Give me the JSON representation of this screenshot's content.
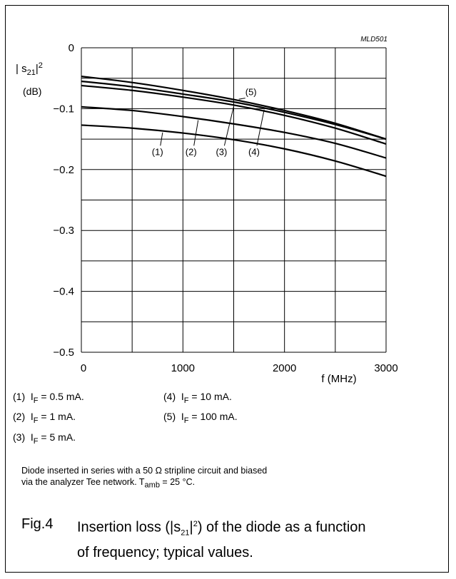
{
  "chart_data": {
    "type": "line",
    "code": "MLD501",
    "ylabel": "|s21|2",
    "ylabel_unit": "(dB)",
    "xlabel": "f (MHz)",
    "xlim": [
      0,
      3000
    ],
    "ylim": [
      -0.5,
      0
    ],
    "x_ticks": [
      0,
      1000,
      2000,
      3000
    ],
    "y_ticks": [
      0,
      -0.1,
      -0.2,
      -0.3,
      -0.4,
      -0.5
    ],
    "y_tick_labels": [
      "0",
      "−0.1",
      "−0.2",
      "−0.3",
      "−0.4",
      "−0.5"
    ],
    "x_tick_labels": [
      "0",
      "1000",
      "2000",
      "3000"
    ],
    "grid": true,
    "x": [
      0,
      500,
      1000,
      1500,
      2000,
      2500,
      3000
    ],
    "series": [
      {
        "name": "(1)",
        "values": [
          -0.127,
          -0.132,
          -0.14,
          -0.151,
          -0.166,
          -0.186,
          -0.211
        ]
      },
      {
        "name": "(2)",
        "values": [
          -0.097,
          -0.103,
          -0.113,
          -0.125,
          -0.139,
          -0.157,
          -0.181
        ]
      },
      {
        "name": "(3)",
        "values": [
          -0.062,
          -0.07,
          -0.081,
          -0.094,
          -0.111,
          -0.132,
          -0.158
        ]
      },
      {
        "name": "(4)",
        "values": [
          -0.055,
          -0.064,
          -0.076,
          -0.089,
          -0.106,
          -0.126,
          -0.15
        ]
      },
      {
        "name": "(5)",
        "values": [
          -0.047,
          -0.057,
          -0.07,
          -0.085,
          -0.103,
          -0.124,
          -0.15
        ]
      }
    ],
    "curve_labels": [
      "(1)",
      "(2)",
      "(3)",
      "(4)",
      "(5)"
    ]
  },
  "legend": [
    {
      "num": "(1)",
      "text": "I",
      "sub": "F",
      "val": " = 0.5 mA."
    },
    {
      "num": "(2)",
      "text": "I",
      "sub": "F",
      "val": " = 1 mA."
    },
    {
      "num": "(3)",
      "text": "I",
      "sub": "F",
      "val": " = 5 mA."
    },
    {
      "num": "(4)",
      "text": "I",
      "sub": "F",
      "val": " = 10 mA."
    },
    {
      "num": "(5)",
      "text": "I",
      "sub": "F",
      "val": " = 100 mA."
    }
  ],
  "note": {
    "line1": "Diode inserted in series with a 50 Ω stripline circuit and biased",
    "line2_pre": "via the analyzer Tee network. T",
    "line2_sub": "amb",
    "line2_post": " = 25 °C."
  },
  "caption": {
    "fig": "Fig.4",
    "text": "Insertion loss (|s21|2) of the diode as a function of frequency; typical values."
  }
}
